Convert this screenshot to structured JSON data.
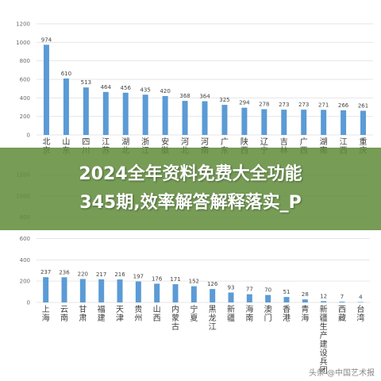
{
  "chart_data": [
    {
      "type": "bar",
      "categories": [
        "北京",
        "山东",
        "四川",
        "江苏",
        "湖北",
        "浙江",
        "安徽",
        "河北",
        "河南",
        "广东",
        "陕西",
        "辽宁",
        "吉林",
        "广西",
        "湖南",
        "江西",
        "重庆"
      ],
      "values": [
        974,
        610,
        513,
        464,
        456,
        435,
        420,
        368,
        364,
        325,
        294,
        278,
        273,
        273,
        271,
        266,
        261
      ],
      "ylim": [
        0,
        1200
      ],
      "yticks": [
        0,
        200,
        400,
        600,
        800,
        1000,
        1200
      ],
      "grid": true,
      "bar_color": "#5b9bd5"
    },
    {
      "type": "bar",
      "categories": [
        "上海",
        "云南",
        "甘肃",
        "福建",
        "天津",
        "贵州",
        "山西",
        "内蒙古",
        "宁夏",
        "黑龙江",
        "新疆",
        "海南",
        "澳门",
        "香港",
        "青海",
        "新疆生产建设兵团",
        "西藏",
        "台湾"
      ],
      "values": [
        237,
        236,
        220,
        217,
        216,
        197,
        176,
        171,
        152,
        126,
        93,
        77,
        70,
        51,
        28,
        12,
        7,
        4
      ],
      "ylim": [
        0,
        1200
      ],
      "yticks": [
        0,
        200,
        400,
        600,
        800,
        1000,
        1200
      ],
      "grid": true,
      "bar_color": "#5b9bd5"
    }
  ],
  "banner": {
    "line1": "2024全年资料免费大全功能",
    "line2": "345期,效率解答解释落实_P"
  },
  "watermark": "头条 @中国艺术报"
}
